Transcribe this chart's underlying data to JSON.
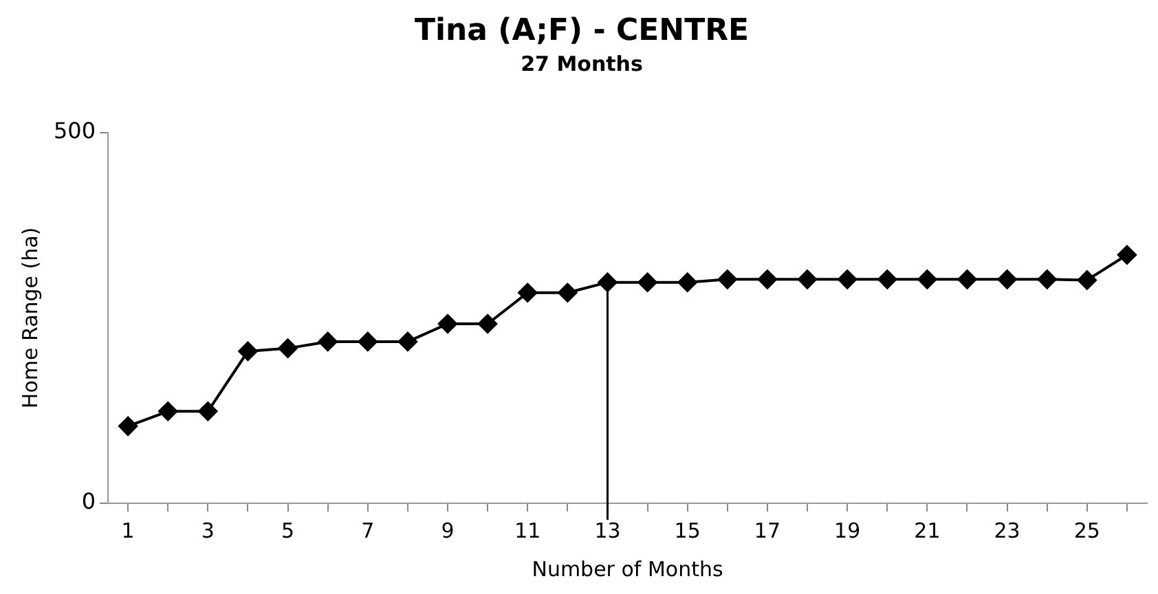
{
  "chart_data": {
    "type": "line",
    "title": "Tina (A;F) - CENTRE",
    "subtitle": "27 Months",
    "xlabel": "Number of Months",
    "ylabel": "Home Range (ha)",
    "x": [
      1,
      2,
      3,
      4,
      5,
      6,
      7,
      8,
      9,
      10,
      11,
      12,
      13,
      14,
      15,
      16,
      17,
      18,
      19,
      20,
      21,
      22,
      23,
      24,
      25,
      26
    ],
    "series": [
      {
        "color": "#000000",
        "values": [
          104,
          124,
          124,
          205,
          209,
          218,
          218,
          218,
          242,
          242,
          284,
          284,
          298,
          298,
          298,
          302,
          302,
          302,
          302,
          302,
          302,
          302,
          302,
          302,
          301,
          335
        ]
      }
    ],
    "xlim": [
      0.5,
      26.5
    ],
    "xticks": [
      1,
      {
        "value": 2,
        "label": null
      },
      3,
      {
        "value": 4,
        "label": null
      },
      5,
      {
        "value": 6,
        "label": null
      },
      7,
      {
        "value": 8,
        "label": null
      },
      9,
      {
        "value": 10,
        "label": null
      },
      11,
      {
        "value": 12,
        "label": null
      },
      13,
      {
        "value": 14,
        "label": null
      },
      15,
      {
        "value": 16,
        "label": null
      },
      17,
      {
        "value": 18,
        "label": null
      },
      19,
      {
        "value": 20,
        "label": null
      },
      21,
      {
        "value": 22,
        "label": null
      },
      23,
      {
        "value": 24,
        "label": null
      },
      25,
      {
        "value": 26,
        "label": null
      }
    ],
    "ylim": [
      0,
      500
    ],
    "yticks": [
      0,
      500
    ],
    "ref_lines": [
      {
        "axis": "x",
        "value": 13,
        "color": "#000000"
      }
    ],
    "grid": false,
    "legend": false,
    "marker": "diamond",
    "line_style": "solid"
  }
}
